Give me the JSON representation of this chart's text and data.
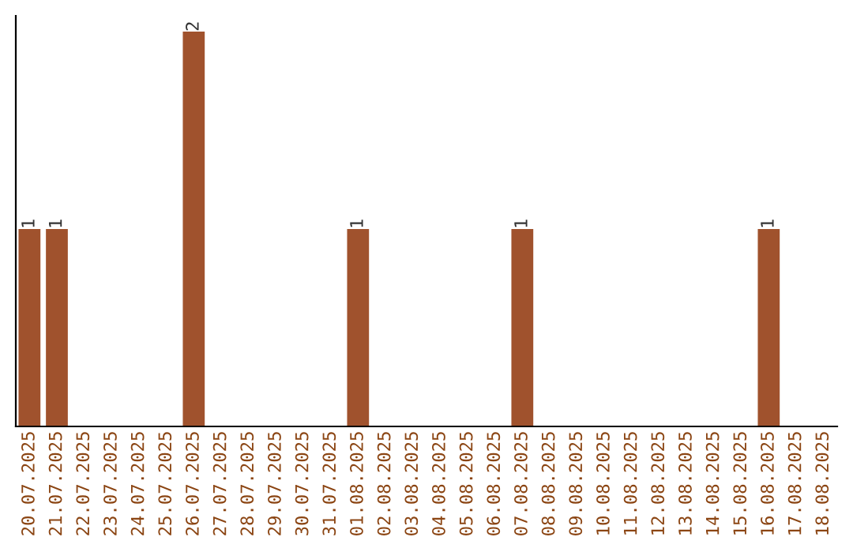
{
  "chart_data": {
    "type": "bar",
    "categories": [
      "20.07.2025",
      "21.07.2025",
      "22.07.2025",
      "23.07.2025",
      "24.07.2025",
      "25.07.2025",
      "26.07.2025",
      "27.07.2025",
      "28.07.2025",
      "29.07.2025",
      "30.07.2025",
      "31.07.2025",
      "01.08.2025",
      "02.08.2025",
      "03.08.2025",
      "04.08.2025",
      "05.08.2025",
      "06.08.2025",
      "07.08.2025",
      "08.08.2025",
      "09.08.2025",
      "10.08.2025",
      "11.08.2025",
      "12.08.2025",
      "13.08.2025",
      "14.08.2025",
      "15.08.2025",
      "16.08.2025",
      "17.08.2025",
      "18.08.2025"
    ],
    "values": [
      1,
      1,
      0,
      0,
      0,
      0,
      2,
      0,
      0,
      0,
      0,
      0,
      1,
      0,
      0,
      0,
      0,
      0,
      1,
      0,
      0,
      0,
      0,
      0,
      0,
      0,
      0,
      1,
      0,
      0
    ],
    "value_labels": [
      "1",
      "1",
      null,
      null,
      null,
      null,
      "2",
      null,
      null,
      null,
      null,
      null,
      "1",
      null,
      null,
      null,
      null,
      null,
      "1",
      null,
      null,
      null,
      null,
      null,
      null,
      null,
      null,
      "1",
      null,
      null
    ],
    "color": "#a0522d",
    "ylim": [
      0,
      2.08
    ],
    "tick_labels": "x",
    "grid": false,
    "legend": false
  }
}
